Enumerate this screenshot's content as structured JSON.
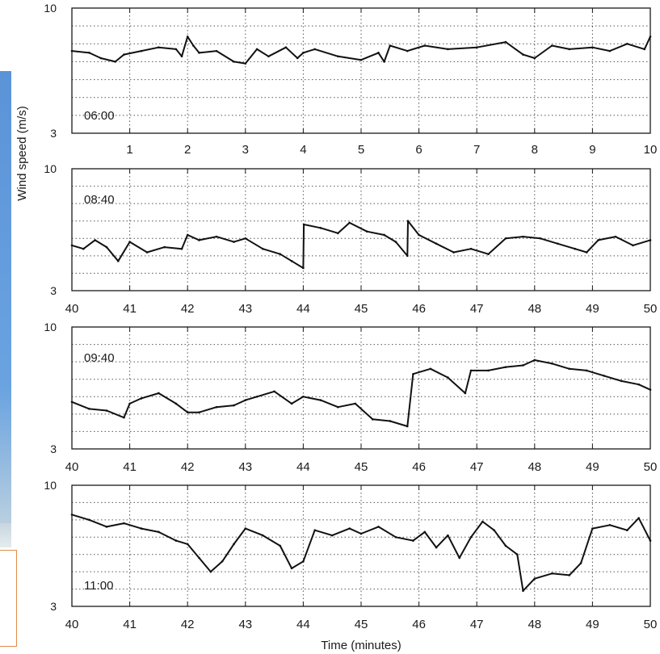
{
  "colors": {
    "trace": "#111111",
    "frame": "#1a1a1a",
    "grid": "#555555",
    "side_accent": "#5b93d8",
    "box_border": "#e08a4a"
  },
  "chart_data": {
    "type": "line",
    "ylabel": "Wind speed (m/s)",
    "xlabel": "Time (minutes)",
    "panels": [
      {
        "label": "06:00",
        "xlim": [
          0,
          10
        ],
        "ylim": [
          3,
          10
        ],
        "xticks": [
          "1",
          "2",
          "3",
          "4",
          "5",
          "6",
          "7",
          "8",
          "9",
          "10"
        ],
        "yticks": [
          "3",
          "10"
        ],
        "series": [
          {
            "x": [
              0,
              0.3,
              0.5,
              0.75,
              0.9,
              1.2,
              1.5,
              1.8,
              1.9,
              2.0,
              2.1,
              2.2,
              2.5,
              2.8,
              3.0,
              3.2,
              3.4,
              3.7,
              3.9,
              4.0,
              4.2,
              4.6,
              5.0,
              5.3,
              5.4,
              5.5,
              5.8,
              6.1,
              6.5,
              7.0,
              7.5,
              7.8,
              8.0,
              8.3,
              8.6,
              9.0,
              9.3,
              9.6,
              9.9,
              10.0
            ],
            "y": [
              7.6,
              7.5,
              7.2,
              7.0,
              7.4,
              7.6,
              7.8,
              7.7,
              7.3,
              8.4,
              7.9,
              7.5,
              7.6,
              7.0,
              6.9,
              7.7,
              7.3,
              7.8,
              7.2,
              7.5,
              7.7,
              7.3,
              7.1,
              7.5,
              7.0,
              7.9,
              7.6,
              7.9,
              7.7,
              7.8,
              8.1,
              7.4,
              7.2,
              7.9,
              7.7,
              7.8,
              7.6,
              8.0,
              7.7,
              8.4
            ]
          }
        ]
      },
      {
        "label": "08:40",
        "xlim": [
          40,
          50
        ],
        "ylim": [
          3,
          10
        ],
        "xticks": [
          "40",
          "41",
          "42",
          "43",
          "44",
          "45",
          "46",
          "47",
          "48",
          "49",
          "50"
        ],
        "yticks": [
          "3",
          "10"
        ],
        "series": [
          {
            "x": [
              40,
              40.2,
              40.4,
              40.6,
              40.8,
              41.0,
              41.3,
              41.6,
              41.9,
              42.0,
              42.2,
              42.5,
              42.8,
              43.0,
              43.3,
              43.6,
              43.8,
              44.0,
              44.01,
              44.3,
              44.6,
              44.8,
              45.1,
              45.4,
              45.6,
              45.8,
              45.81,
              46.0,
              46.3,
              46.6,
              46.9,
              47.2,
              47.5,
              47.8,
              48.1,
              48.4,
              48.7,
              48.9,
              49.1,
              49.4,
              49.7,
              50.0
            ],
            "y": [
              5.6,
              5.4,
              5.9,
              5.5,
              4.7,
              5.8,
              5.2,
              5.5,
              5.4,
              6.2,
              5.9,
              6.1,
              5.8,
              6.0,
              5.4,
              5.1,
              4.7,
              4.3,
              6.8,
              6.6,
              6.3,
              6.9,
              6.4,
              6.2,
              5.8,
              5.0,
              7.0,
              6.2,
              5.7,
              5.2,
              5.4,
              5.1,
              6.0,
              6.1,
              6.0,
              5.7,
              5.4,
              5.2,
              5.9,
              6.1,
              5.6,
              5.9
            ]
          }
        ]
      },
      {
        "label": "09:40",
        "xlim": [
          40,
          50
        ],
        "ylim": [
          3,
          10
        ],
        "xticks": [
          "40",
          "41",
          "42",
          "43",
          "44",
          "45",
          "46",
          "47",
          "48",
          "49",
          "50"
        ],
        "yticks": [
          "3",
          "10"
        ],
        "series": [
          {
            "x": [
              40,
              40.3,
              40.6,
              40.9,
              41.0,
              41.2,
              41.5,
              41.8,
              42.0,
              42.2,
              42.5,
              42.8,
              43.0,
              43.2,
              43.5,
              43.8,
              44.0,
              44.3,
              44.6,
              44.9,
              45.2,
              45.5,
              45.8,
              45.9,
              46.2,
              46.5,
              46.8,
              46.9,
              47.2,
              47.5,
              47.8,
              48.0,
              48.3,
              48.6,
              48.9,
              49.2,
              49.5,
              49.8,
              50.0
            ],
            "y": [
              5.7,
              5.3,
              5.2,
              4.8,
              5.6,
              5.9,
              6.2,
              5.6,
              5.1,
              5.1,
              5.4,
              5.5,
              5.8,
              6.0,
              6.3,
              5.6,
              6.0,
              5.8,
              5.4,
              5.6,
              4.7,
              4.6,
              4.3,
              7.3,
              7.6,
              7.1,
              6.2,
              7.5,
              7.5,
              7.7,
              7.8,
              8.1,
              7.9,
              7.6,
              7.5,
              7.2,
              6.9,
              6.7,
              6.4
            ]
          }
        ]
      },
      {
        "label": "11:00",
        "xlim": [
          40,
          50
        ],
        "ylim": [
          3,
          10
        ],
        "xticks": [
          "40",
          "41",
          "42",
          "43",
          "44",
          "45",
          "46",
          "47",
          "48",
          "49",
          "50"
        ],
        "yticks": [
          "3",
          "10"
        ],
        "series": [
          {
            "x": [
              40,
              40.3,
              40.6,
              40.9,
              41.2,
              41.5,
              41.8,
              42.0,
              42.2,
              42.4,
              42.6,
              42.8,
              43.0,
              43.3,
              43.6,
              43.8,
              44.0,
              44.2,
              44.5,
              44.8,
              45.0,
              45.3,
              45.6,
              45.9,
              46.1,
              46.3,
              46.5,
              46.7,
              46.9,
              47.1,
              47.3,
              47.5,
              47.7,
              47.8,
              48.0,
              48.3,
              48.6,
              48.8,
              49.0,
              49.3,
              49.6,
              49.8,
              50.0
            ],
            "y": [
              8.3,
              8.0,
              7.6,
              7.8,
              7.5,
              7.3,
              6.8,
              6.6,
              5.8,
              5.0,
              5.6,
              6.6,
              7.5,
              7.1,
              6.5,
              5.2,
              5.6,
              7.4,
              7.1,
              7.5,
              7.2,
              7.6,
              7.0,
              6.8,
              7.3,
              6.4,
              7.1,
              5.8,
              7.0,
              7.9,
              7.4,
              6.5,
              6.0,
              3.9,
              4.6,
              4.9,
              4.8,
              5.5,
              7.5,
              7.7,
              7.4,
              8.1,
              6.8
            ]
          }
        ]
      }
    ]
  }
}
